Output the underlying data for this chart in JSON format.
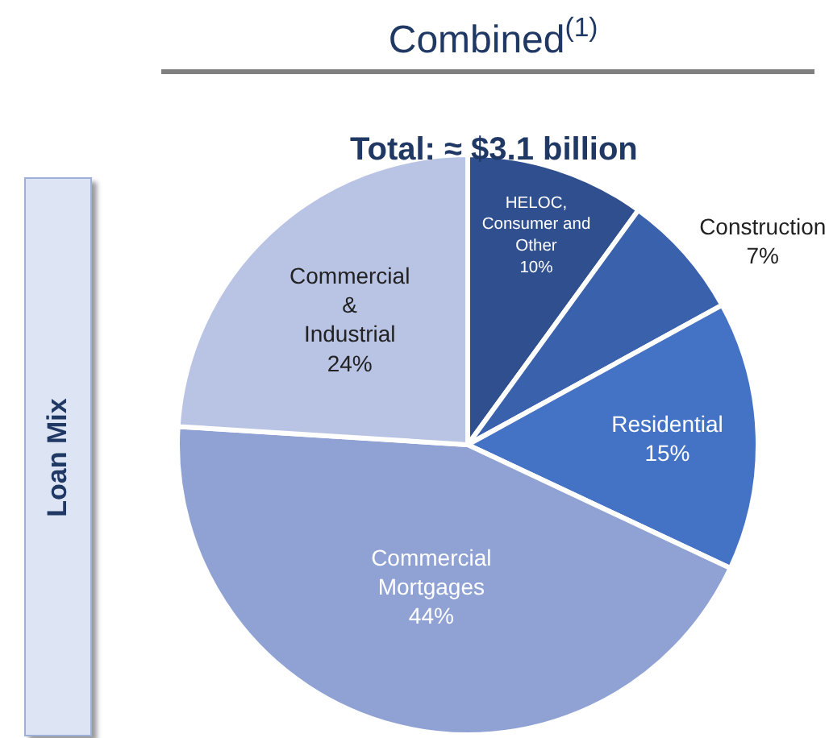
{
  "chart_data": {
    "type": "pie",
    "title": "Combined$^{(1)}$",
    "subtitle": "Total: ≈ $3.1 billion",
    "ylabel": "Loan Mix",
    "categories": [
      "HELOC, Consumer and Other",
      "Construction",
      "Residential",
      "Commercial Mortgages",
      "Commercial & Industrial"
    ],
    "values": [
      10,
      7,
      15,
      44,
      24
    ],
    "value_labels": [
      "10%",
      "7%",
      "15%",
      "44%",
      "24%"
    ],
    "colors": [
      "#2f4f8f",
      "#3a62ac",
      "#4472c4",
      "#8fa2d3",
      "#b9c3e4"
    ],
    "legend": false
  }
}
